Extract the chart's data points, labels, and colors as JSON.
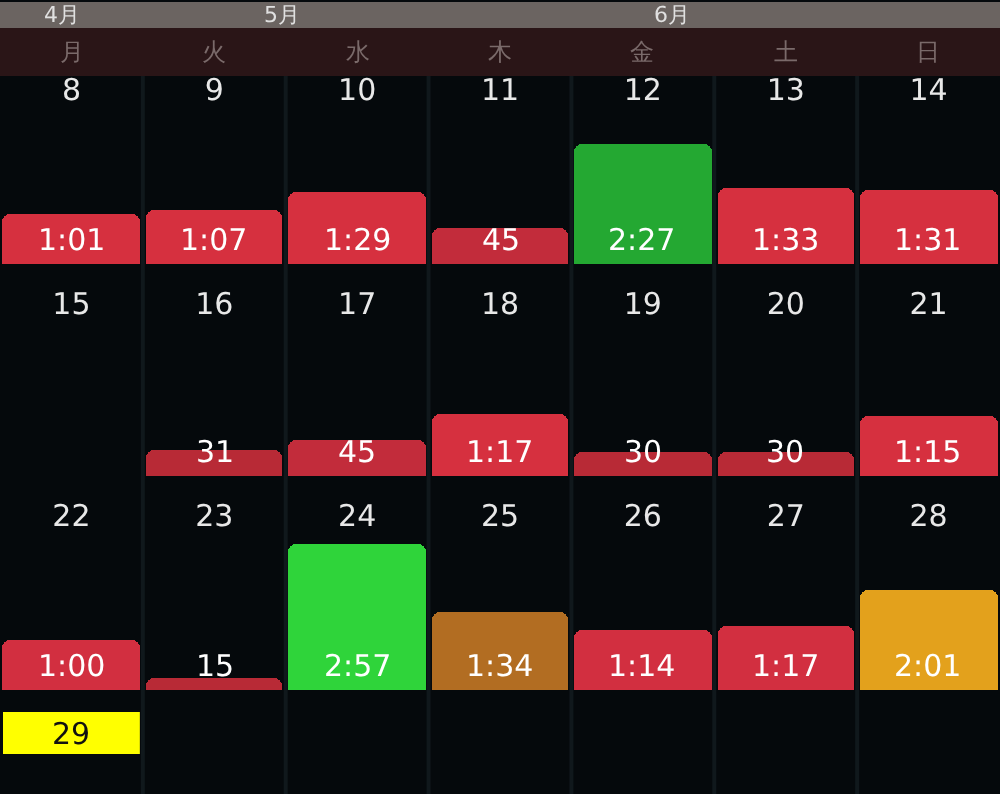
{
  "chart_data": [
    {
      "type": "other",
      "annotations": [
        "4月",
        "5月",
        "6月",
        "月",
        "火",
        "水",
        "木",
        "金",
        "土",
        "日"
      ]
    },
    {
      "type": "bar",
      "categories": [
        "8",
        "9",
        "10",
        "11",
        "12",
        "13",
        "14"
      ],
      "values": [
        61,
        67,
        89,
        45,
        147,
        93,
        91
      ],
      "value_labels": [
        "1:01",
        "1:07",
        "1:29",
        "45",
        "2:27",
        "1:33",
        "1:31"
      ],
      "colors": [
        "#d6303f",
        "#d6303f",
        "#d6303f",
        "#c22c3b",
        "#24a832",
        "#d6303f",
        "#d6303f"
      ],
      "tick_labels": "x"
    },
    {
      "type": "bar",
      "categories": [
        "15",
        "16",
        "17",
        "18",
        "19",
        "20",
        "21"
      ],
      "values": [
        null,
        31,
        45,
        77,
        30,
        30,
        75
      ],
      "value_labels": [
        null,
        "31",
        "45",
        "1:17",
        "30",
        "30",
        "1:15"
      ],
      "colors": [
        "#d6303f",
        "#b82a36",
        "#c22c3b",
        "#d6303f",
        "#b82a36",
        "#b82a36",
        "#d6303f"
      ],
      "tick_labels": "x"
    },
    {
      "type": "bar",
      "categories": [
        "22",
        "23",
        "24",
        "25",
        "26",
        "27",
        "28"
      ],
      "values": [
        60,
        15,
        177,
        94,
        74,
        77,
        121
      ],
      "value_labels": [
        "1:00",
        "15",
        "2:57",
        "1:34",
        "1:14",
        "1:17",
        "2:01"
      ],
      "colors": [
        "#d22f40",
        "#b82a36",
        "#2fd43a",
        "#b26d22",
        "#d22f40",
        "#d22f40",
        "#e3a11c"
      ],
      "tick_labels": "x"
    },
    {
      "type": "other",
      "annotations": [
        "29"
      ]
    }
  ]
}
